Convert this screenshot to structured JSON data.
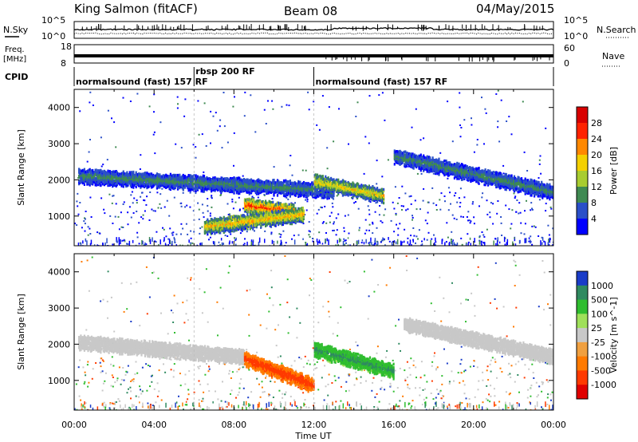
{
  "header": {
    "station": "King Salmon (fitACF)",
    "beam": "Beam 08",
    "date": "04/May/2015"
  },
  "left_labels": {
    "nsky": "N.Sky",
    "nsky_top": "10^5",
    "nsky_bottom": "10^0",
    "freq_line1": "Freq.",
    "freq_line2": "[MHz]",
    "freq_top": "18",
    "freq_bottom": "8",
    "cpid": "CPID"
  },
  "right_labels": {
    "nsearch": "N.Search",
    "nsearch_top": "10^5",
    "nsearch_bottom": "10^0",
    "nave": "Nave",
    "nave_top": "60",
    "nave_bottom": "0"
  },
  "cpid_segments": [
    {
      "label": "normalsound (fast) 157 RF",
      "start": 0,
      "end": 6
    },
    {
      "label": "rbsp 200 RF",
      "start": 6,
      "end": 12
    },
    {
      "label": "normalsound (fast) 157 RF",
      "start": 12,
      "end": 24
    }
  ],
  "x_axis": {
    "label": "Time UT",
    "ticks": [
      "00:00",
      "04:00",
      "08:00",
      "12:00",
      "16:00",
      "20:00",
      "00:00"
    ]
  },
  "chart_data": [
    {
      "type": "heatmap",
      "title": "",
      "xlabel": "",
      "ylabel": "Slant Range [km]",
      "ylim": [
        180,
        4500
      ],
      "xlim": [
        0,
        24
      ],
      "yticks": [
        1000,
        2000,
        3000,
        4000
      ],
      "colorbar": {
        "label": "Power [dB]",
        "ticks": [
          4,
          8,
          12,
          16,
          20,
          24,
          28
        ],
        "range": [
          0,
          32
        ],
        "colors": [
          "#0000ff",
          "#2a4fc8",
          "#3f8a52",
          "#a8cc30",
          "#f4d000",
          "#ff8800",
          "#ff2200",
          "#d80000"
        ]
      },
      "regions": [
        {
          "desc": "main echo band",
          "x": [
            0.2,
            13
          ],
          "y_start": 2150,
          "y_end": 1750,
          "value": 10
        },
        {
          "desc": "strong band",
          "x": [
            8.5,
            11
          ],
          "y_start": 1350,
          "y_end": 1150,
          "value": 26
        },
        {
          "desc": "lower band",
          "x": [
            6.5,
            11.5
          ],
          "y_start": 750,
          "y_end": 1100,
          "value": 20
        },
        {
          "desc": "afternoon band",
          "x": [
            12,
            15.5
          ],
          "y_start": 2000,
          "y_end": 1600,
          "value": 18
        },
        {
          "desc": "late band",
          "x": [
            16,
            24
          ],
          "y_start": 2700,
          "y_end": 1700,
          "value": 10
        }
      ]
    },
    {
      "type": "heatmap",
      "title": "",
      "xlabel": "Time UT",
      "ylabel": "Slant Range [km]",
      "ylim": [
        180,
        4500
      ],
      "xlim": [
        0,
        24
      ],
      "yticks": [
        1000,
        2000,
        3000,
        4000
      ],
      "colorbar": {
        "label": "Velocity [m s^-1]",
        "ticks": [
          1000,
          500,
          100,
          25,
          -25,
          -100,
          -500,
          -1000
        ],
        "colors": [
          "#1a3cc8",
          "#2f8a60",
          "#2fbd2f",
          "#9fe05a",
          "#c8c8c8",
          "#f0a040",
          "#ff7a00",
          "#ff3a00",
          "#e00000"
        ]
      },
      "regions": [
        {
          "desc": "ground scatter",
          "x": [
            0.2,
            8.5
          ],
          "y_start": 2100,
          "y_end": 1700,
          "value": 0
        },
        {
          "desc": "negative velocity",
          "x": [
            8.5,
            12
          ],
          "y_start": 1650,
          "y_end": 900,
          "value": -400
        },
        {
          "desc": "positive velocity",
          "x": [
            12,
            16
          ],
          "y_start": 1900,
          "y_end": 1300,
          "value": 300
        },
        {
          "desc": "late ground scatter",
          "x": [
            16.5,
            24
          ],
          "y_start": 2600,
          "y_end": 1700,
          "value": 0
        }
      ]
    }
  ]
}
